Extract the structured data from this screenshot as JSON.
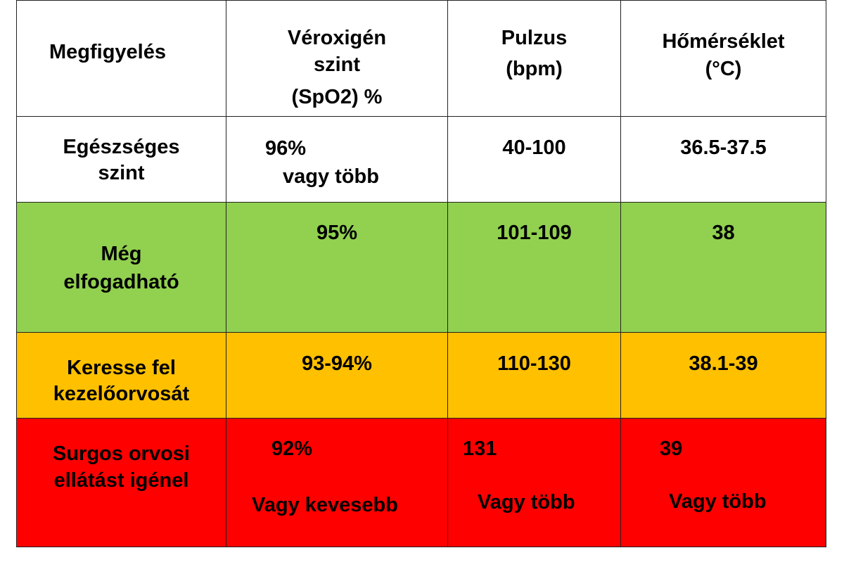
{
  "header": {
    "observation": "Megfigyelés",
    "spo2_line1": "Véroxigén",
    "spo2_line2": "szint",
    "spo2_line3": "(SpO2) %",
    "pulse_line1": "Pulzus",
    "pulse_line2": "(bpm)",
    "temp_line1": "Hőmérséklet",
    "temp_line2": "(°C)"
  },
  "rows": [
    {
      "label_line1": "Egészséges",
      "label_line2": "szint",
      "spo2_line1": "96%",
      "spo2_line2": "vagy  több",
      "pulse": "40-100",
      "temp": "36.5-37.5",
      "color": "#ffffff"
    },
    {
      "label_line1": "Még",
      "label_line2": "elfogadható",
      "spo2": "95%",
      "pulse": "101-109",
      "temp": "38",
      "color": "#92d050"
    },
    {
      "label_line1": "Keresse fel",
      "label_line2": "kezelőorvosát",
      "spo2": "93-94%",
      "pulse": "110-130",
      "temp": "38.1-39",
      "color": "#ffc000"
    },
    {
      "label_line1": "Surgos orvosi",
      "label_line2": "ellátást igénel",
      "spo2_line1": "92%",
      "spo2_line2": "Vagy kevesebb",
      "pulse_line1": "131",
      "pulse_line2": "Vagy több",
      "temp_line1": "39",
      "temp_line2": "Vagy több",
      "color": "#ff0000"
    }
  ]
}
